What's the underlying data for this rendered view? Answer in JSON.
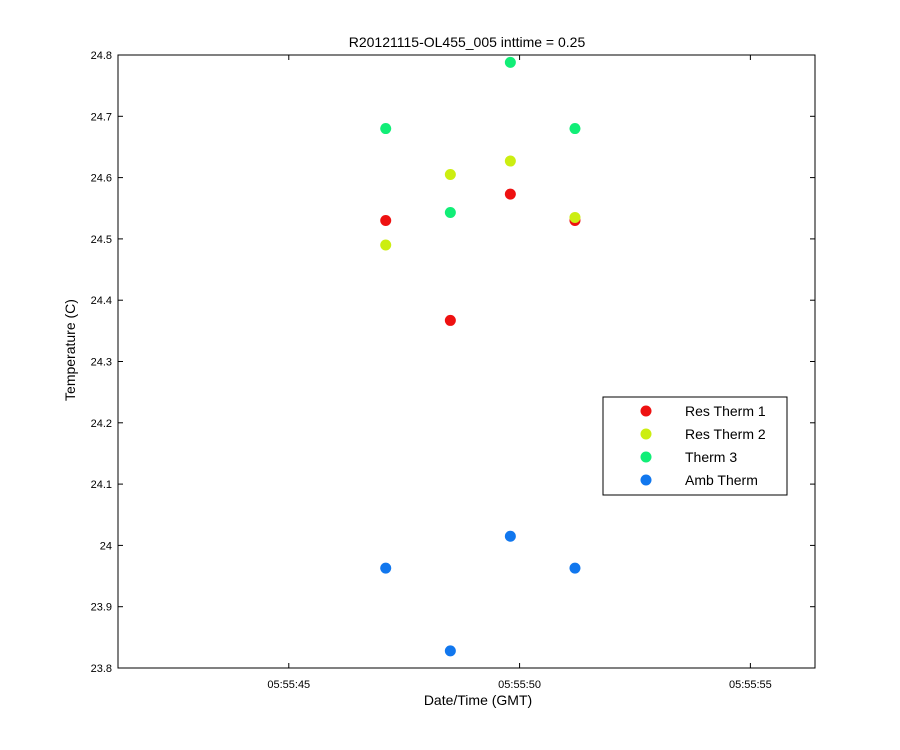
{
  "chart_data": {
    "type": "scatter",
    "title": "R20121115-OL455_005 inttime = 0.25",
    "xlabel": "Date/Time (GMT)",
    "ylabel": "Temperature (C)",
    "xlim": [
      "05:55:41.3",
      "05:55:56.4"
    ],
    "ylim": [
      23.8,
      24.8
    ],
    "grid": false,
    "legend_position": "right",
    "x_ticks": [
      "05:55:45",
      "05:55:50",
      "05:55:55"
    ],
    "y_ticks": [
      "23.8",
      "23.9",
      "24",
      "24.1",
      "24.2",
      "24.3",
      "24.4",
      "24.5",
      "24.6",
      "24.7",
      "24.8"
    ],
    "series": [
      {
        "name": "Res Therm 1",
        "color": "#ee1111",
        "points": [
          {
            "x": "05:55:47.1",
            "y": 24.53
          },
          {
            "x": "05:55:48.5",
            "y": 24.367
          },
          {
            "x": "05:55:49.8",
            "y": 24.573
          },
          {
            "x": "05:55:51.2",
            "y": 24.53
          }
        ]
      },
      {
        "name": "Res Therm 2",
        "color": "#ccee11",
        "points": [
          {
            "x": "05:55:47.1",
            "y": 24.49
          },
          {
            "x": "05:55:48.5",
            "y": 24.605
          },
          {
            "x": "05:55:49.8",
            "y": 24.627
          },
          {
            "x": "05:55:51.2",
            "y": 24.535
          }
        ]
      },
      {
        "name": "Therm 3",
        "color": "#11ee77",
        "points": [
          {
            "x": "05:55:47.1",
            "y": 24.68
          },
          {
            "x": "05:55:48.5",
            "y": 24.543
          },
          {
            "x": "05:55:49.8",
            "y": 24.788
          },
          {
            "x": "05:55:51.2",
            "y": 24.68
          }
        ]
      },
      {
        "name": "Amb Therm",
        "color": "#1177ee",
        "points": [
          {
            "x": "05:55:47.1",
            "y": 23.963
          },
          {
            "x": "05:55:48.5",
            "y": 23.828
          },
          {
            "x": "05:55:49.8",
            "y": 24.015
          },
          {
            "x": "05:55:51.2",
            "y": 23.963
          }
        ]
      }
    ]
  }
}
